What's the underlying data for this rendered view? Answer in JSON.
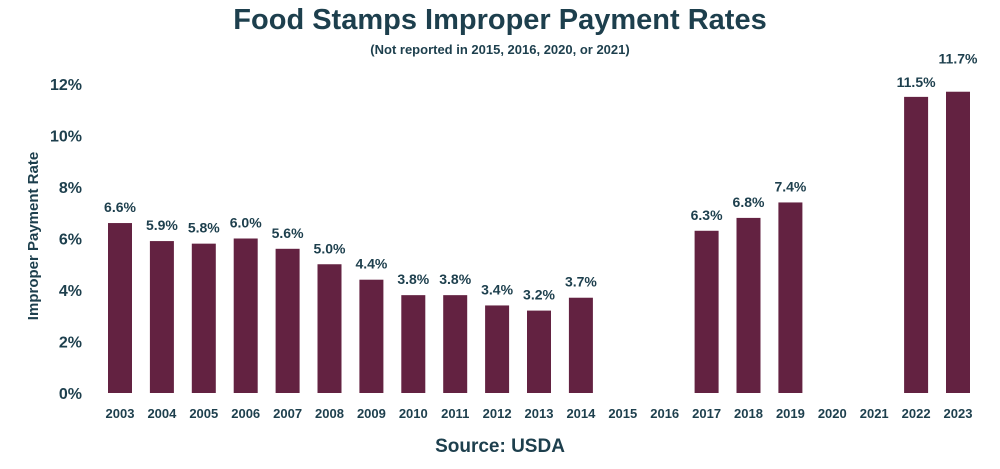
{
  "colors": {
    "bar": "#632241",
    "text": "#1d3f4d"
  },
  "chart_data": {
    "type": "bar",
    "title": "Food Stamps Improper Payment Rates",
    "subtitle": "(Not reported in 2015, 2016, 2020, or 2021)",
    "source": "Source: USDA",
    "ylabel": "Improper Payment Rate",
    "xlabel": "",
    "ylim": [
      0,
      12
    ],
    "yticks": [
      0,
      2,
      4,
      6,
      8,
      10,
      12
    ],
    "ytick_labels": [
      "0%",
      "2%",
      "4%",
      "6%",
      "8%",
      "10%",
      "12%"
    ],
    "grid": false,
    "categories": [
      "2003",
      "2004",
      "2005",
      "2006",
      "2007",
      "2008",
      "2009",
      "2010",
      "2011",
      "2012",
      "2013",
      "2014",
      "2015",
      "2016",
      "2017",
      "2018",
      "2019",
      "2020",
      "2021",
      "2022",
      "2023"
    ],
    "values": [
      6.6,
      5.9,
      5.8,
      6.0,
      5.6,
      5.0,
      4.4,
      3.8,
      3.8,
      3.4,
      3.2,
      3.7,
      null,
      null,
      6.3,
      6.8,
      7.4,
      null,
      null,
      11.5,
      11.7
    ],
    "data_labels": [
      "6.6%",
      "5.9%",
      "5.8%",
      "6.0%",
      "5.6%",
      "5.0%",
      "4.4%",
      "3.8%",
      "3.8%",
      "3.4%",
      "3.2%",
      "3.7%",
      "",
      "",
      "6.3%",
      "6.8%",
      "7.4%",
      "",
      "",
      "11.5%",
      "11.7%"
    ]
  }
}
